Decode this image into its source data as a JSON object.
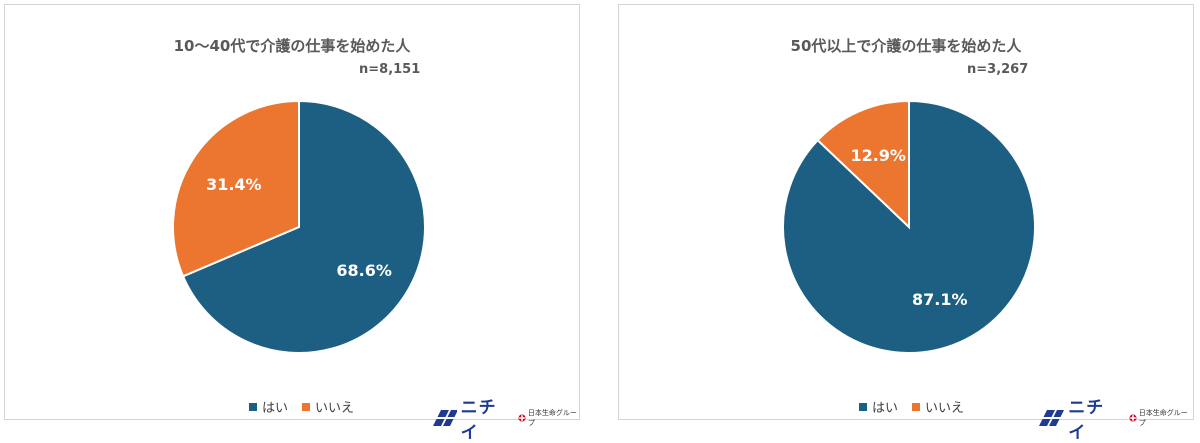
{
  "colors": {
    "yes": "#1d5f82",
    "no": "#ec7530",
    "label": "#ffffff"
  },
  "legend": {
    "yes": "はい",
    "no": "いいえ"
  },
  "logo": {
    "brand": "ニチイ",
    "group": "日本生命グループ"
  },
  "chart_data": [
    {
      "type": "pie",
      "title": "10〜40代で介護の仕事を始めた人",
      "n_label": "n=8,151",
      "slices": [
        {
          "label": "はい",
          "value": 68.6,
          "display": "68.6%"
        },
        {
          "label": "いいえ",
          "value": 31.4,
          "display": "31.4%"
        }
      ],
      "start": "12 o'clock, clockwise",
      "legend_position": "bottom"
    },
    {
      "type": "pie",
      "title": "50代以上で介護の仕事を始めた人",
      "n_label": "n=3,267",
      "slices": [
        {
          "label": "はい",
          "value": 87.1,
          "display": "87.1%"
        },
        {
          "label": "いいえ",
          "value": 12.9,
          "display": "12.9%"
        }
      ],
      "start": "12 o'clock, clockwise",
      "legend_position": "bottom"
    }
  ]
}
